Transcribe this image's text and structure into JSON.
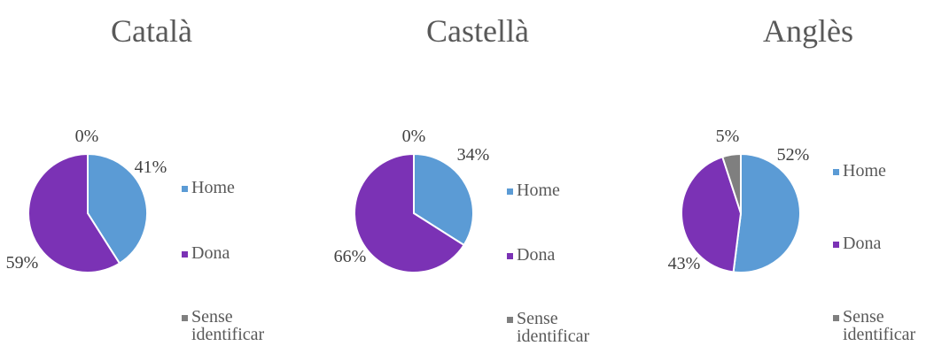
{
  "colors": {
    "home": "#5b9bd5",
    "dona": "#7b32b5",
    "sense": "#7f7f7f"
  },
  "chart_data": [
    {
      "type": "pie",
      "title": "Català",
      "categories": [
        "Home",
        "Dona",
        "Sense identificar"
      ],
      "values": [
        41,
        59,
        0
      ],
      "data_labels": [
        "41%",
        "59%",
        "0%"
      ],
      "legend_position": "right"
    },
    {
      "type": "pie",
      "title": "Castellà",
      "categories": [
        "Home",
        "Dona",
        "Sense identificar"
      ],
      "values": [
        34,
        66,
        0
      ],
      "data_labels": [
        "34%",
        "66%",
        "0%"
      ],
      "legend_position": "right"
    },
    {
      "type": "pie",
      "title": "Anglès",
      "categories": [
        "Home",
        "Dona",
        "Sense identificar"
      ],
      "values": [
        52,
        43,
        5
      ],
      "data_labels": [
        "52%",
        "43%",
        "5%"
      ],
      "legend_position": "right"
    }
  ],
  "legend": {
    "items": [
      "Home",
      "Dona",
      "Sense\nidentificar"
    ]
  }
}
